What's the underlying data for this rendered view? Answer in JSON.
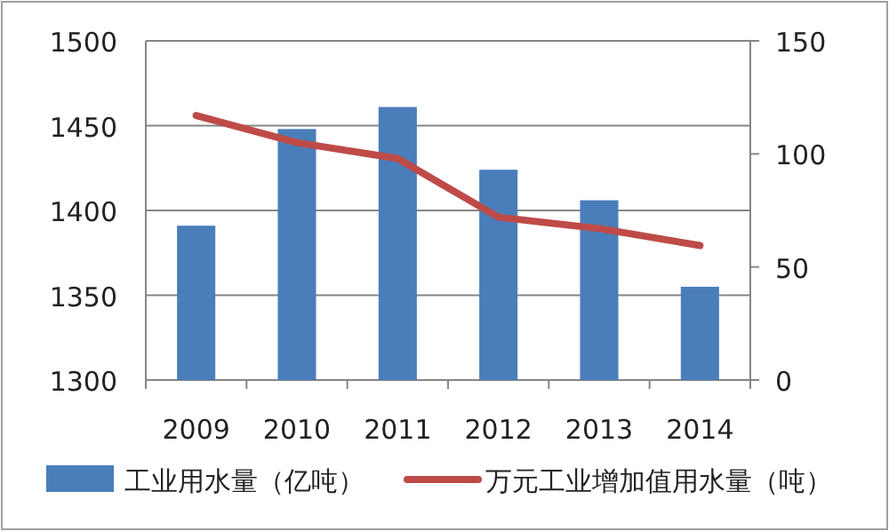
{
  "chart_data": {
    "type": "bar",
    "categories": [
      "2009",
      "2010",
      "2011",
      "2012",
      "2013",
      "2014"
    ],
    "series": [
      {
        "name": "工业用水量（亿吨）",
        "color": "#4a7ebb",
        "values": [
          1391,
          1448,
          1461,
          1424,
          1406,
          1355
        ]
      },
      {
        "name": "万元工业增加值用水量（吨）",
        "type": "line",
        "axis": "y2",
        "color": "#be4b48",
        "values": [
          117,
          105,
          98,
          72,
          67,
          59.5
        ]
      }
    ],
    "ylim": [
      1300,
      1500
    ],
    "yticks": [
      1300,
      1350,
      1400,
      1450,
      1500
    ],
    "y2lim": [
      0,
      150
    ],
    "y2ticks": [
      0,
      50,
      100,
      150
    ],
    "grid": "y",
    "legend": "bottom",
    "marker": "none",
    "line_style": "solid"
  }
}
